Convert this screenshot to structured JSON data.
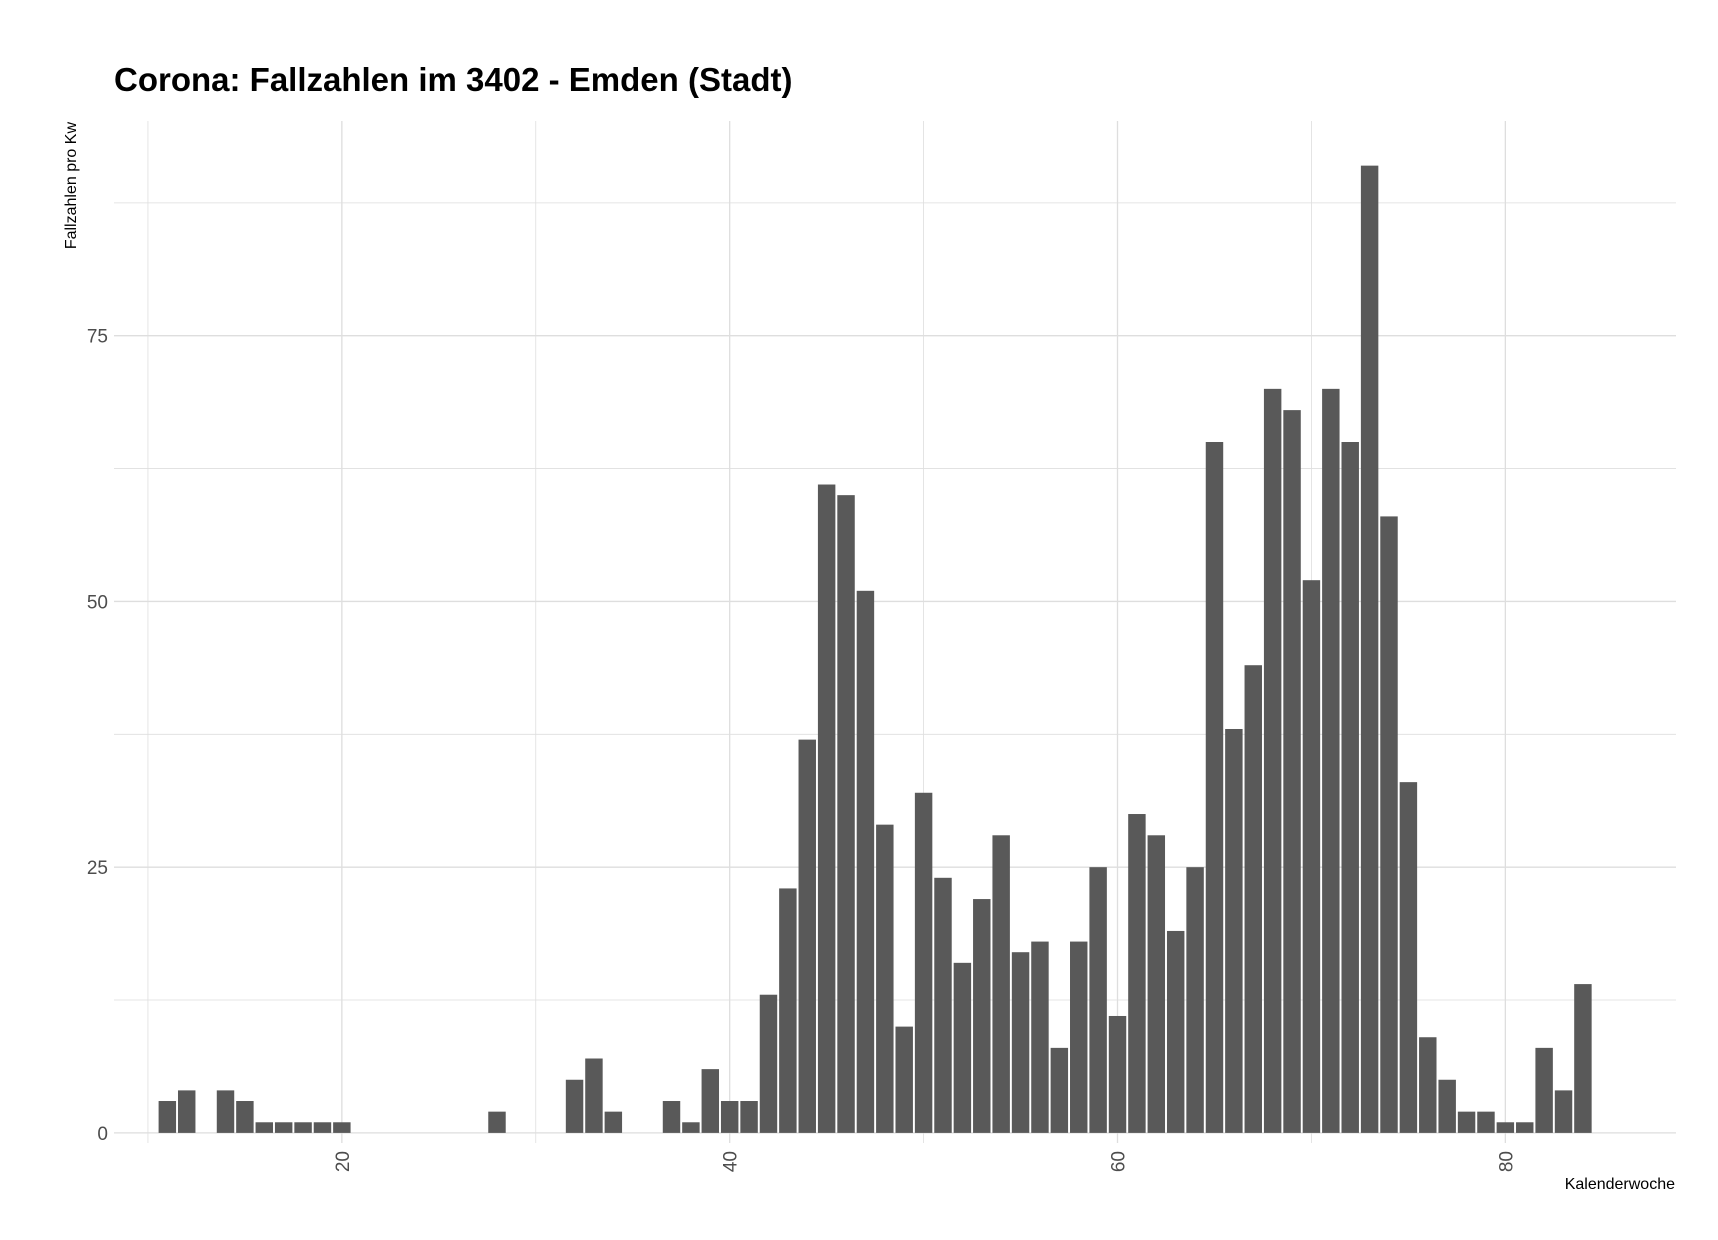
{
  "chart_data": {
    "type": "bar",
    "title": "Corona: Fallzahlen im 3402 - Emden (Stadt)",
    "xlabel": "Kalenderwoche",
    "ylabel": "Fallzahlen pro Kw",
    "xlim": [
      8.25,
      88.8
    ],
    "ylim": [
      -0.95,
      95.2
    ],
    "x_ticks": [
      20,
      40,
      60,
      80
    ],
    "y_ticks": [
      0,
      25,
      50,
      75
    ],
    "grid": true,
    "bar_color": "#595959",
    "grid_color": "#dedede",
    "x": [
      11,
      12,
      14,
      15,
      16,
      17,
      18,
      19,
      20,
      28,
      32,
      33,
      34,
      37,
      38,
      39,
      40,
      41,
      42,
      43,
      44,
      45,
      46,
      47,
      48,
      49,
      50,
      51,
      52,
      53,
      54,
      55,
      56,
      57,
      58,
      59,
      60,
      61,
      62,
      63,
      64,
      65,
      66,
      67,
      68,
      69,
      70,
      71,
      72,
      73,
      74,
      75,
      76,
      77,
      78,
      79,
      80,
      81,
      82,
      83,
      84
    ],
    "values": [
      3,
      4,
      4,
      3,
      1,
      1,
      1,
      1,
      1,
      2,
      5,
      7,
      2,
      3,
      1,
      6,
      3,
      3,
      13,
      23,
      37,
      61,
      60,
      51,
      29,
      10,
      32,
      24,
      16,
      22,
      28,
      17,
      18,
      8,
      18,
      25,
      11,
      30,
      28,
      19,
      25,
      65,
      38,
      44,
      70,
      68,
      52,
      70,
      65,
      91,
      58,
      33,
      9,
      5,
      2,
      2,
      1,
      1,
      8,
      4,
      14
    ]
  }
}
